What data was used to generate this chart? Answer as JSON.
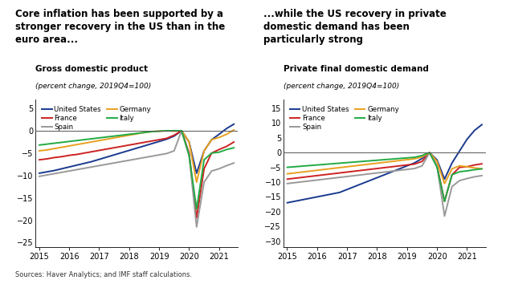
{
  "title_left": "Core inflation has been supported by a\nstronger recovery in the US than in the\neuro area...",
  "title_right": "...while the US recovery in private\ndomestic demand has been\nparticularly strong",
  "subtitle_left": "Gross domestic product",
  "subtitle_right": "Private final domestic demand",
  "subtitle_note": "(percent change, 2019Q4=100)",
  "source": "Sources: Haver Analytics; and IMF staff calculations.",
  "countries": [
    "United States",
    "France",
    "Spain",
    "Germany",
    "Italy"
  ],
  "colors": {
    "United States": "#1a3a8f",
    "France": "#cc2222",
    "Spain": "#999999",
    "Germany": "#e8a020",
    "Italy": "#22aa44"
  },
  "gdp": {
    "United States": [
      -9.5,
      -9.2,
      -8.9,
      -8.5,
      -8.1,
      -7.7,
      -7.3,
      -6.9,
      -6.4,
      -5.9,
      -5.4,
      -4.9,
      -4.4,
      -3.9,
      -3.4,
      -2.9,
      -2.4,
      -1.9,
      -1.2,
      -0.0,
      -2.5,
      -9.5,
      -4.5,
      -2.0,
      -0.8,
      0.5,
      1.5
    ],
    "France": [
      -6.5,
      -6.3,
      -6.0,
      -5.8,
      -5.5,
      -5.3,
      -5.0,
      -4.7,
      -4.4,
      -4.1,
      -3.8,
      -3.5,
      -3.2,
      -2.9,
      -2.6,
      -2.3,
      -2.0,
      -1.7,
      -1.0,
      -0.0,
      -5.0,
      -19.5,
      -8.5,
      -5.0,
      -4.2,
      -3.5,
      -2.5
    ],
    "Spain": [
      -10.2,
      -9.9,
      -9.6,
      -9.3,
      -9.0,
      -8.7,
      -8.4,
      -8.1,
      -7.8,
      -7.5,
      -7.2,
      -6.9,
      -6.6,
      -6.3,
      -6.0,
      -5.7,
      -5.4,
      -5.1,
      -4.5,
      -0.0,
      -5.5,
      -21.5,
      -11.5,
      -9.0,
      -8.5,
      -7.8,
      -7.2
    ],
    "Germany": [
      -4.5,
      -4.3,
      -4.0,
      -3.7,
      -3.4,
      -3.1,
      -2.8,
      -2.5,
      -2.2,
      -1.9,
      -1.6,
      -1.3,
      -1.0,
      -0.7,
      -0.4,
      -0.2,
      -0.1,
      0.0,
      -0.1,
      -0.0,
      -2.5,
      -11.5,
      -4.5,
      -2.0,
      -1.5,
      -0.8,
      0.2
    ],
    "Italy": [
      -3.2,
      -3.0,
      -2.8,
      -2.6,
      -2.4,
      -2.2,
      -2.0,
      -1.8,
      -1.6,
      -1.4,
      -1.2,
      -1.0,
      -0.8,
      -0.6,
      -0.4,
      -0.2,
      -0.1,
      0.0,
      0.0,
      -0.0,
      -5.5,
      -17.5,
      -6.5,
      -5.0,
      -4.8,
      -4.2,
      -3.8
    ]
  },
  "pdd": {
    "United States": [
      -17.0,
      -16.5,
      -16.0,
      -15.5,
      -15.0,
      -14.5,
      -14.0,
      -13.5,
      -12.5,
      -11.5,
      -10.5,
      -9.5,
      -8.5,
      -7.5,
      -6.5,
      -5.5,
      -4.5,
      -3.5,
      -2.0,
      -0.0,
      -2.5,
      -9.0,
      -3.5,
      0.5,
      4.5,
      7.5,
      9.5
    ],
    "France": [
      -9.0,
      -8.7,
      -8.4,
      -8.1,
      -7.8,
      -7.5,
      -7.2,
      -6.9,
      -6.6,
      -6.3,
      -6.0,
      -5.7,
      -5.4,
      -5.1,
      -4.8,
      -4.5,
      -4.2,
      -3.9,
      -3.0,
      -0.0,
      -4.5,
      -16.5,
      -7.5,
      -5.0,
      -4.8,
      -4.2,
      -3.8
    ],
    "Spain": [
      -10.5,
      -10.2,
      -9.9,
      -9.6,
      -9.3,
      -9.0,
      -8.7,
      -8.4,
      -8.1,
      -7.8,
      -7.5,
      -7.2,
      -6.9,
      -6.6,
      -6.3,
      -6.0,
      -5.7,
      -5.4,
      -4.5,
      -0.0,
      -4.5,
      -21.5,
      -11.5,
      -9.5,
      -8.8,
      -8.2,
      -7.8
    ],
    "Germany": [
      -7.2,
      -6.9,
      -6.6,
      -6.3,
      -6.0,
      -5.7,
      -5.4,
      -5.1,
      -4.8,
      -4.5,
      -4.2,
      -3.9,
      -3.6,
      -3.3,
      -3.0,
      -2.7,
      -2.4,
      -2.1,
      -1.5,
      -0.0,
      -3.0,
      -10.5,
      -5.5,
      -4.5,
      -4.8,
      -5.2,
      -5.5
    ],
    "Italy": [
      -5.0,
      -4.8,
      -4.6,
      -4.4,
      -4.2,
      -4.0,
      -3.8,
      -3.6,
      -3.4,
      -3.2,
      -3.0,
      -2.8,
      -2.6,
      -2.4,
      -2.2,
      -2.0,
      -1.8,
      -1.6,
      -1.0,
      -0.0,
      -5.0,
      -16.5,
      -7.5,
      -6.5,
      -6.2,
      -5.8,
      -5.5
    ]
  },
  "gdp_ylim": [
    -26,
    7
  ],
  "gdp_yticks": [
    5,
    0,
    -5,
    -10,
    -15,
    -20,
    -25
  ],
  "pdd_ylim": [
    -32,
    18
  ],
  "pdd_yticks": [
    15,
    10,
    5,
    0,
    -5,
    -10,
    -15,
    -20,
    -25,
    -30
  ],
  "xtick_labels": [
    "2015",
    "2016",
    "2017",
    "2018",
    "2019",
    "2020",
    "2021"
  ]
}
